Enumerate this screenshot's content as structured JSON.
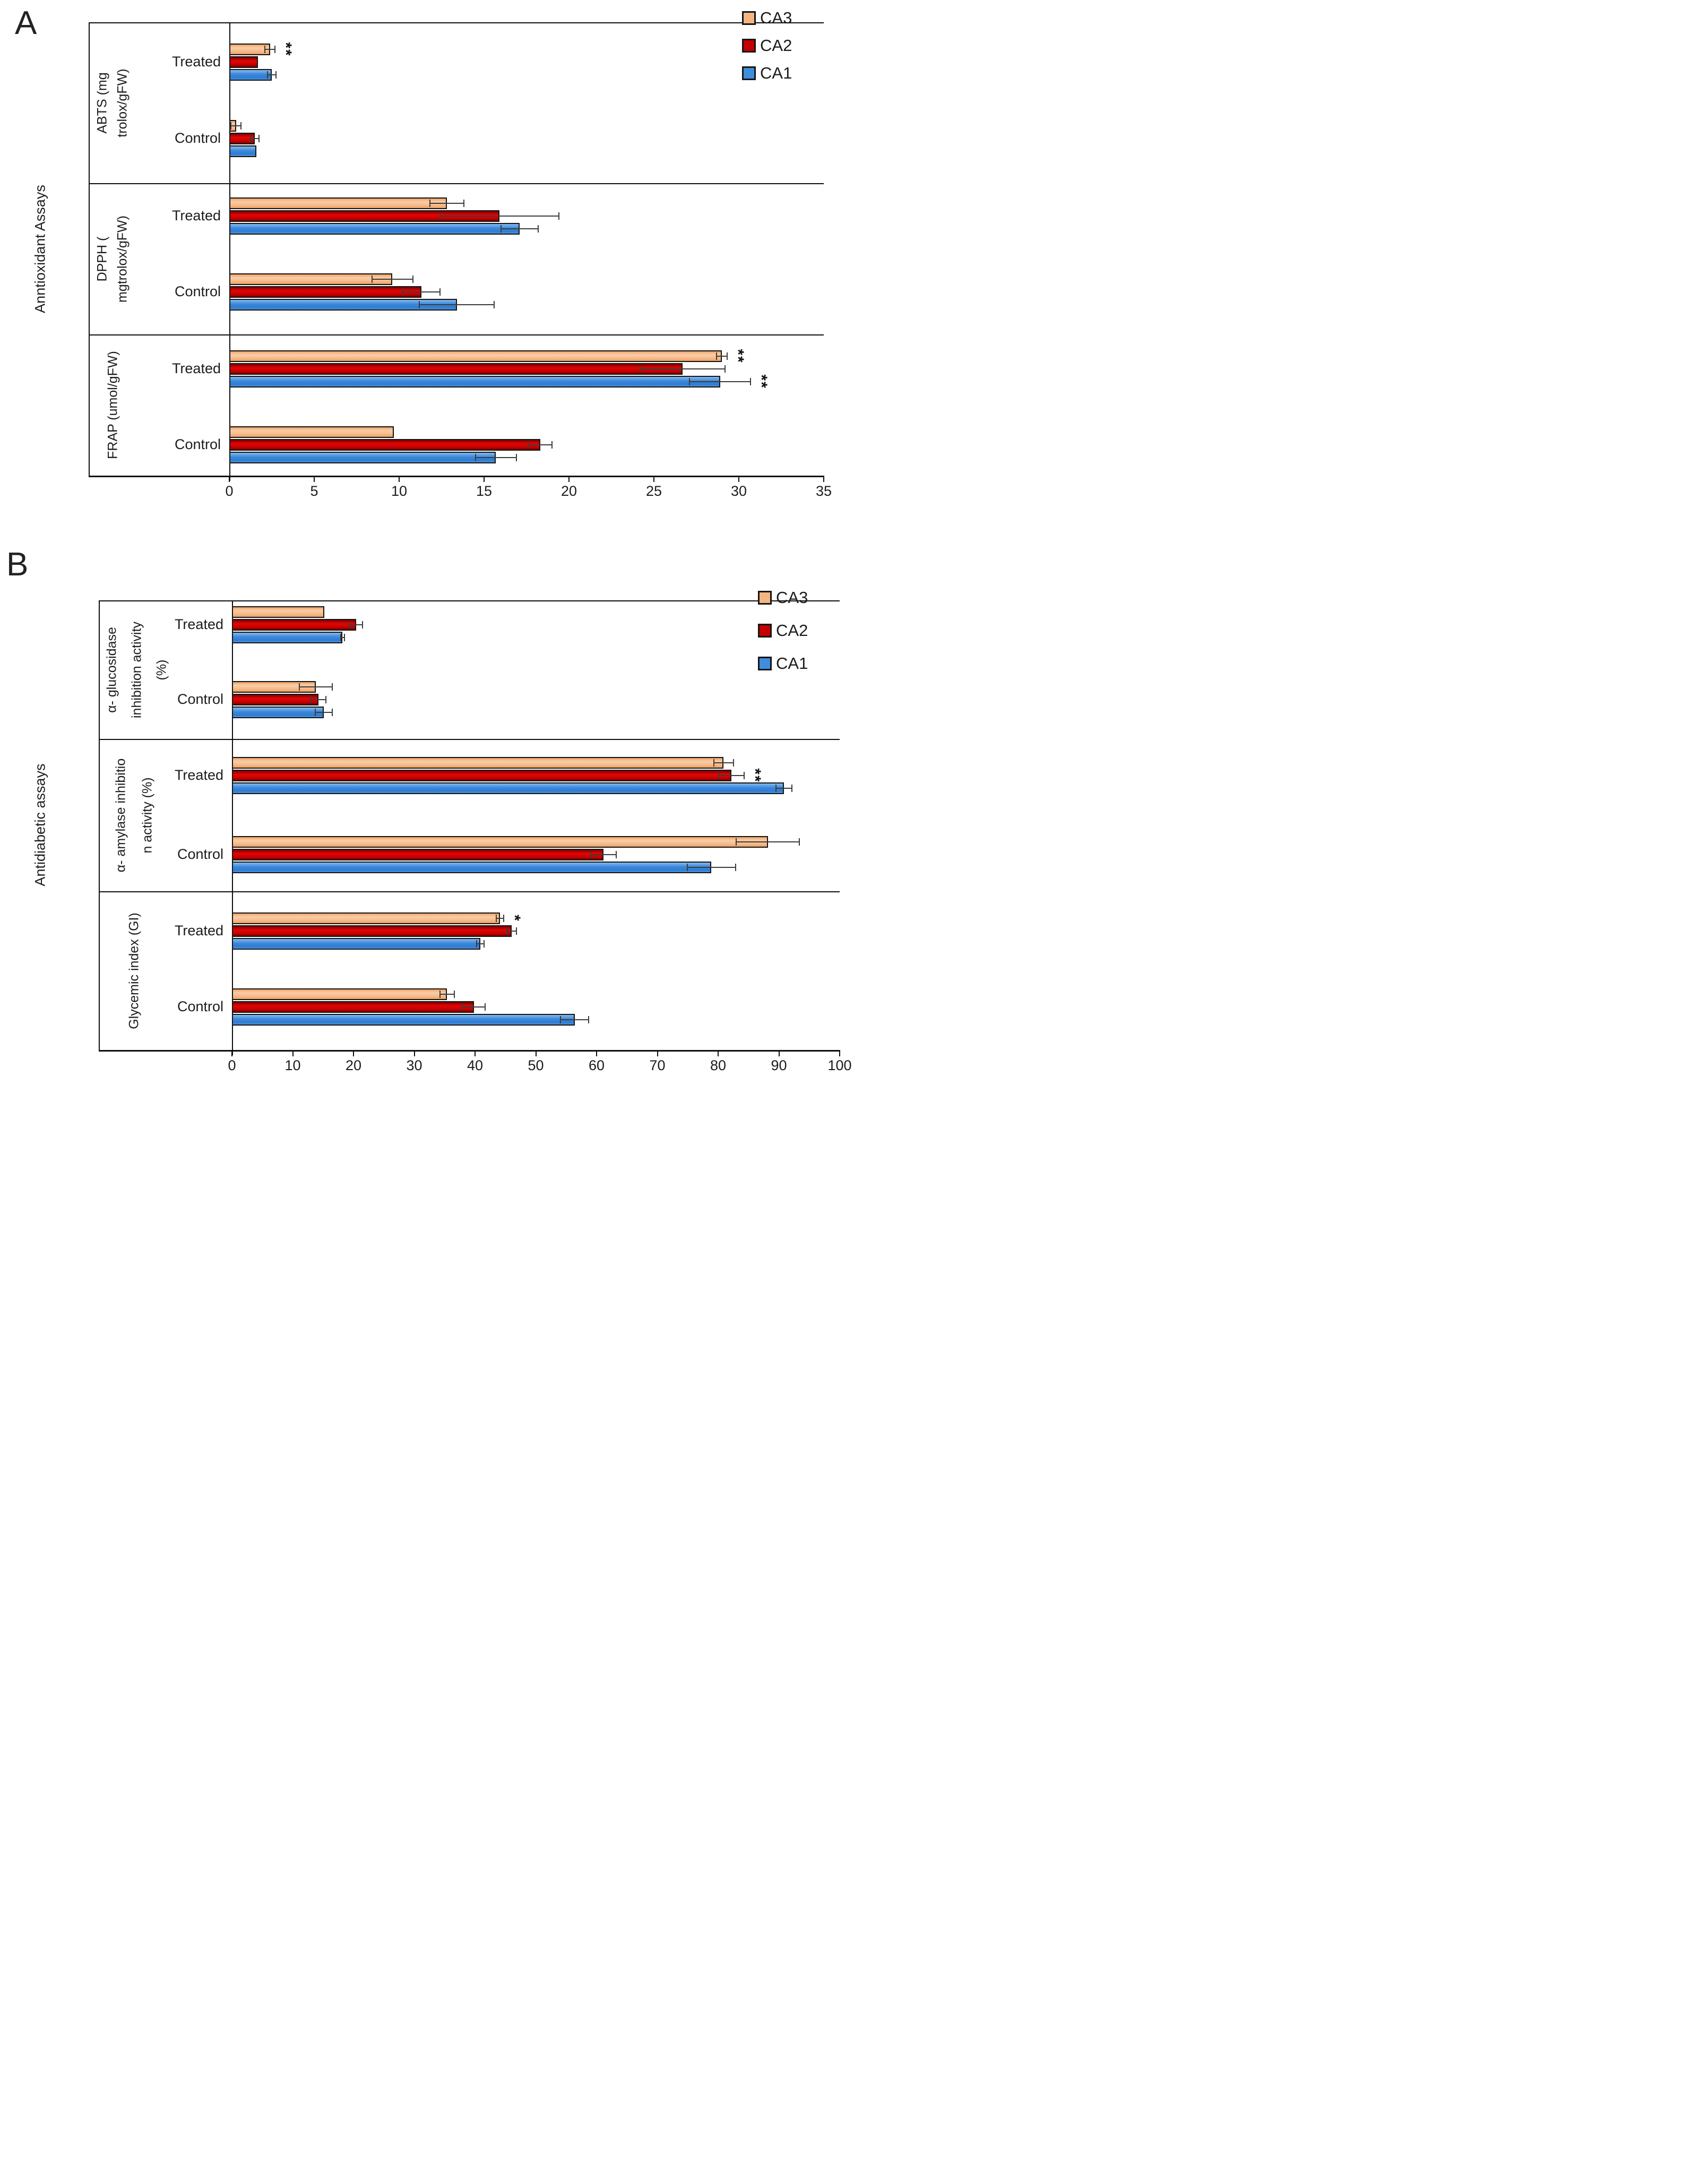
{
  "chart_data": [
    {
      "type": "bar",
      "orientation": "horizontal",
      "panel_letter": "A",
      "category_axis_label": "Anntioxidant Assays",
      "value_axis": {
        "min": 0,
        "max": 35,
        "tick_step": 5,
        "tick_labels": [
          "0",
          "5",
          "10",
          "15",
          "20",
          "25",
          "30",
          "35"
        ]
      },
      "legend": {
        "position": "top-right",
        "entries": [
          "CA3",
          "CA2",
          "CA1"
        ]
      },
      "series_order_top_to_bottom": [
        "CA3",
        "CA2",
        "CA1"
      ],
      "series_colors": {
        "CA3": "#F5B583",
        "CA2": "#C40000",
        "CA1": "#3E8EDD"
      },
      "groups": [
        {
          "group_label_lines": [
            "ABTS (mg",
            "trolox/gFW)"
          ],
          "conditions": [
            {
              "condition": "Treated",
              "values": {
                "CA3": 2.4,
                "CA2": 1.7,
                "CA1": 2.5
              },
              "errors": {
                "CA3": 0.3,
                "CA2": 0,
                "CA1": 0.25
              },
              "significance": {
                "CA3": "**"
              }
            },
            {
              "condition": "Control",
              "values": {
                "CA3": 0.4,
                "CA2": 1.5,
                "CA1": 1.6
              },
              "errors": {
                "CA3": 0.3,
                "CA2": 0.25,
                "CA1": 0
              },
              "significance": {}
            }
          ]
        },
        {
          "group_label_lines": [
            "DPPH (",
            "mgtrolox/gFW)"
          ],
          "conditions": [
            {
              "condition": "Treated",
              "values": {
                "CA3": 12.8,
                "CA2": 15.9,
                "CA1": 17.1
              },
              "errors": {
                "CA3": 1.0,
                "CA2": 3.5,
                "CA1": 1.1
              },
              "significance": {}
            },
            {
              "condition": "Control",
              "values": {
                "CA3": 9.6,
                "CA2": 11.3,
                "CA1": 13.4
              },
              "errors": {
                "CA3": 1.2,
                "CA2": 1.1,
                "CA1": 2.2
              },
              "significance": {}
            }
          ]
        },
        {
          "group_label_lines": [
            "FRAP (umol/gFW)"
          ],
          "conditions": [
            {
              "condition": "Treated",
              "values": {
                "CA3": 29.0,
                "CA2": 26.7,
                "CA1": 28.9
              },
              "errors": {
                "CA3": 0.3,
                "CA2": 2.5,
                "CA1": 1.8
              },
              "significance": {
                "CA3": "**",
                "CA1": "**"
              }
            },
            {
              "condition": "Control",
              "values": {
                "CA3": 9.7,
                "CA2": 18.3,
                "CA1": 15.7
              },
              "errors": {
                "CA3": 0,
                "CA2": 0.7,
                "CA1": 1.2
              },
              "significance": {}
            }
          ]
        }
      ]
    },
    {
      "type": "bar",
      "orientation": "horizontal",
      "panel_letter": "B",
      "category_axis_label": "Antidiabetic assays",
      "value_axis": {
        "min": 0,
        "max": 100,
        "tick_step": 10,
        "tick_labels": [
          "0",
          "10",
          "20",
          "30",
          "40",
          "50",
          "60",
          "70",
          "80",
          "90",
          "100"
        ]
      },
      "legend": {
        "position": "top-right",
        "entries": [
          "CA3",
          "CA2",
          "CA1"
        ]
      },
      "series_order_top_to_bottom": [
        "CA3",
        "CA2",
        "CA1"
      ],
      "series_colors": {
        "CA3": "#F5B583",
        "CA2": "#C40000",
        "CA1": "#3E8EDD"
      },
      "groups": [
        {
          "group_label_lines": [
            "α- glucosidase",
            "inhibition activity",
            "(%)"
          ],
          "conditions": [
            {
              "condition": "Treated",
              "values": {
                "CA3": 15.2,
                "CA2": 20.4,
                "CA1": 18.2
              },
              "errors": {
                "CA3": 0,
                "CA2": 1.1,
                "CA1": 0.3
              },
              "significance": {}
            },
            {
              "condition": "Control",
              "values": {
                "CA3": 13.8,
                "CA2": 14.2,
                "CA1": 15.1
              },
              "errors": {
                "CA3": 2.7,
                "CA2": 1.3,
                "CA1": 1.4
              },
              "significance": {}
            }
          ]
        },
        {
          "group_label_lines": [
            "α- amylase inhibitio",
            "n activity (%)"
          ],
          "conditions": [
            {
              "condition": "Treated",
              "values": {
                "CA3": 80.9,
                "CA2": 82.2,
                "CA1": 90.8
              },
              "errors": {
                "CA3": 1.6,
                "CA2": 2.1,
                "CA1": 1.3
              },
              "significance": {
                "CA2": "**"
              }
            },
            {
              "condition": "Control",
              "values": {
                "CA3": 88.2,
                "CA2": 61.1,
                "CA1": 78.9
              },
              "errors": {
                "CA3": 5.2,
                "CA2": 2.1,
                "CA1": 4.0
              },
              "significance": {}
            }
          ]
        },
        {
          "group_label_lines": [
            "Glycemic index (GI)"
          ],
          "conditions": [
            {
              "condition": "Treated",
              "values": {
                "CA3": 44.1,
                "CA2": 46.0,
                "CA1": 40.9
              },
              "errors": {
                "CA3": 0.6,
                "CA2": 0.8,
                "CA1": 0.6
              },
              "significance": {
                "CA3": "*"
              }
            },
            {
              "condition": "Control",
              "values": {
                "CA3": 35.4,
                "CA2": 39.8,
                "CA1": 56.4
              },
              "errors": {
                "CA3": 1.2,
                "CA2": 1.9,
                "CA1": 2.3
              },
              "significance": {}
            }
          ]
        }
      ]
    }
  ]
}
